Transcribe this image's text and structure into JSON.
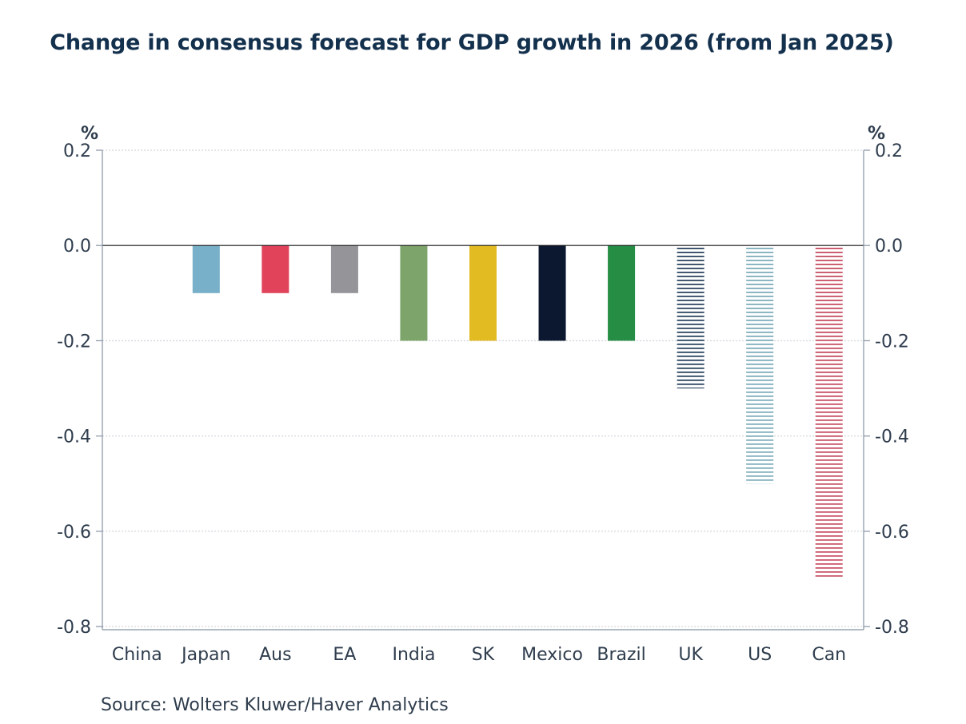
{
  "chart_data": {
    "type": "bar",
    "title": "Change in consensus forecast for GDP growth in 2026 (from Jan 2025)",
    "y_unit_left": "%",
    "y_unit_right": "%",
    "categories": [
      "China",
      "Japan",
      "Aus",
      "EA",
      "India",
      "SK",
      "Mexico",
      "Brazil",
      "UK",
      "US",
      "Can"
    ],
    "values": [
      0.0,
      -0.1,
      -0.1,
      -0.1,
      -0.2,
      -0.2,
      -0.2,
      -0.2,
      -0.3,
      -0.5,
      -0.7
    ],
    "colors": [
      "#5a7fa8",
      "#77b0c8",
      "#e0435a",
      "#959499",
      "#7da46a",
      "#e2ba22",
      "#0c1730",
      "#258d44",
      "#13304d",
      "#6ea3b3",
      "#c0384f"
    ],
    "hatched": [
      false,
      false,
      false,
      false,
      false,
      false,
      false,
      false,
      true,
      true,
      true
    ],
    "ylim": [
      -0.8,
      0.2
    ],
    "yticks": [
      0.2,
      0.0,
      -0.2,
      -0.4,
      -0.6,
      -0.8
    ],
    "ytick_labels": [
      "0.2",
      "0.0",
      "-0.2",
      "-0.4",
      "-0.6",
      "-0.8"
    ],
    "grid": true,
    "dual_y_axis": true
  },
  "source": "Source:  Wolters Kluwer/Haver Analytics"
}
